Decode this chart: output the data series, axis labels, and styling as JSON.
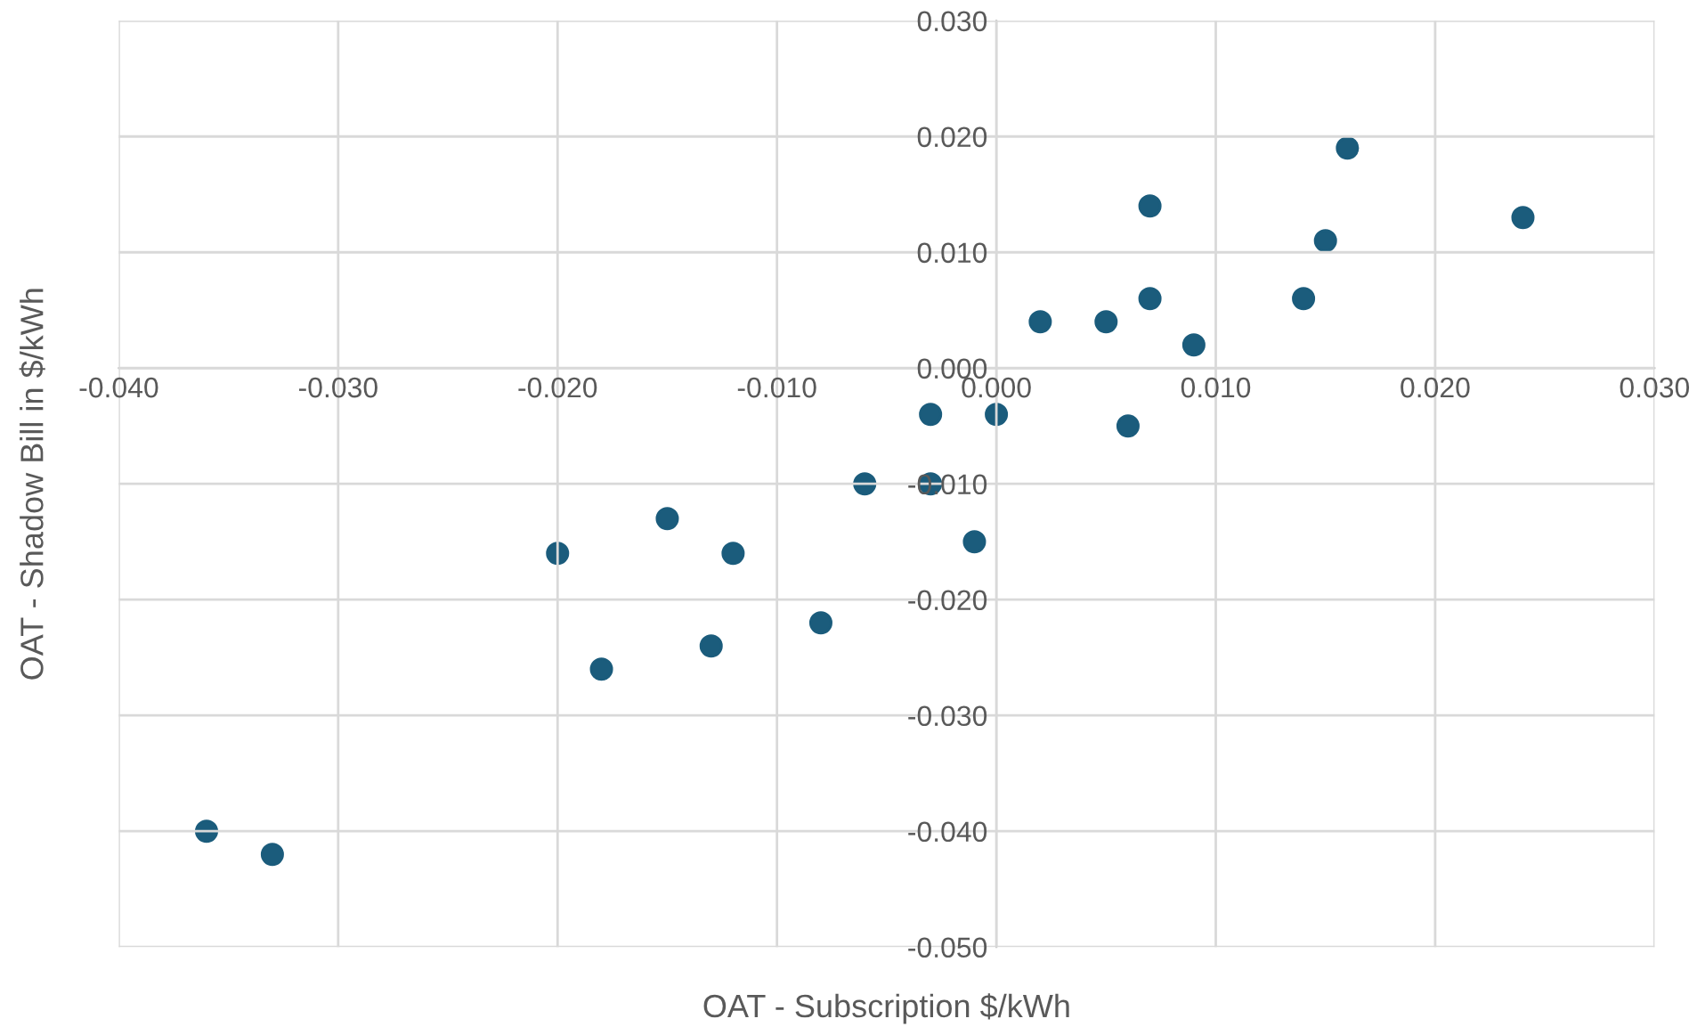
{
  "chart_data": {
    "type": "scatter",
    "xlabel": "OAT - Subscription $/kWh",
    "ylabel": "OAT - Shadow Bill in $/kWh",
    "x": [
      -0.036,
      -0.033,
      -0.02,
      -0.018,
      -0.015,
      -0.013,
      -0.012,
      -0.008,
      -0.006,
      -0.003,
      -0.003,
      -0.001,
      0.0,
      0.002,
      0.005,
      0.006,
      0.007,
      0.007,
      0.009,
      0.014,
      0.015,
      0.016,
      0.024
    ],
    "series": [
      {
        "color": "#1b5c7c",
        "values": [
          -0.04,
          -0.042,
          -0.016,
          -0.026,
          -0.013,
          -0.024,
          -0.016,
          -0.022,
          -0.01,
          -0.004,
          -0.01,
          -0.015,
          -0.004,
          0.004,
          0.004,
          -0.005,
          0.014,
          0.006,
          0.002,
          0.006,
          0.011,
          0.019,
          0.013
        ]
      }
    ],
    "xlim": [
      -0.04,
      0.03
    ],
    "ylim": [
      -0.05,
      0.03
    ],
    "xticks": [
      {
        "value": -0.04,
        "label": "-0.040"
      },
      {
        "value": -0.03,
        "label": "-0.030"
      },
      {
        "value": -0.02,
        "label": "-0.020"
      },
      {
        "value": -0.01,
        "label": "-0.010"
      },
      {
        "value": 0,
        "label": "0.000"
      },
      {
        "value": 0.01,
        "label": "0.010"
      },
      {
        "value": 0.02,
        "label": "0.020"
      },
      {
        "value": 0.03,
        "label": "0.030"
      }
    ],
    "yticks": [
      {
        "value": -0.05,
        "label": "-0.050"
      },
      {
        "value": -0.04,
        "label": "-0.040"
      },
      {
        "value": -0.03,
        "label": "-0.030"
      },
      {
        "value": -0.02,
        "label": "-0.020"
      },
      {
        "value": -0.01,
        "label": "-0.010"
      },
      {
        "value": 0,
        "label": "0.000"
      },
      {
        "value": 0.01,
        "label": "0.010"
      },
      {
        "value": 0.02,
        "label": "0.020"
      },
      {
        "value": 0.03,
        "label": "0.030"
      }
    ],
    "grid": true,
    "marker": "circle"
  }
}
